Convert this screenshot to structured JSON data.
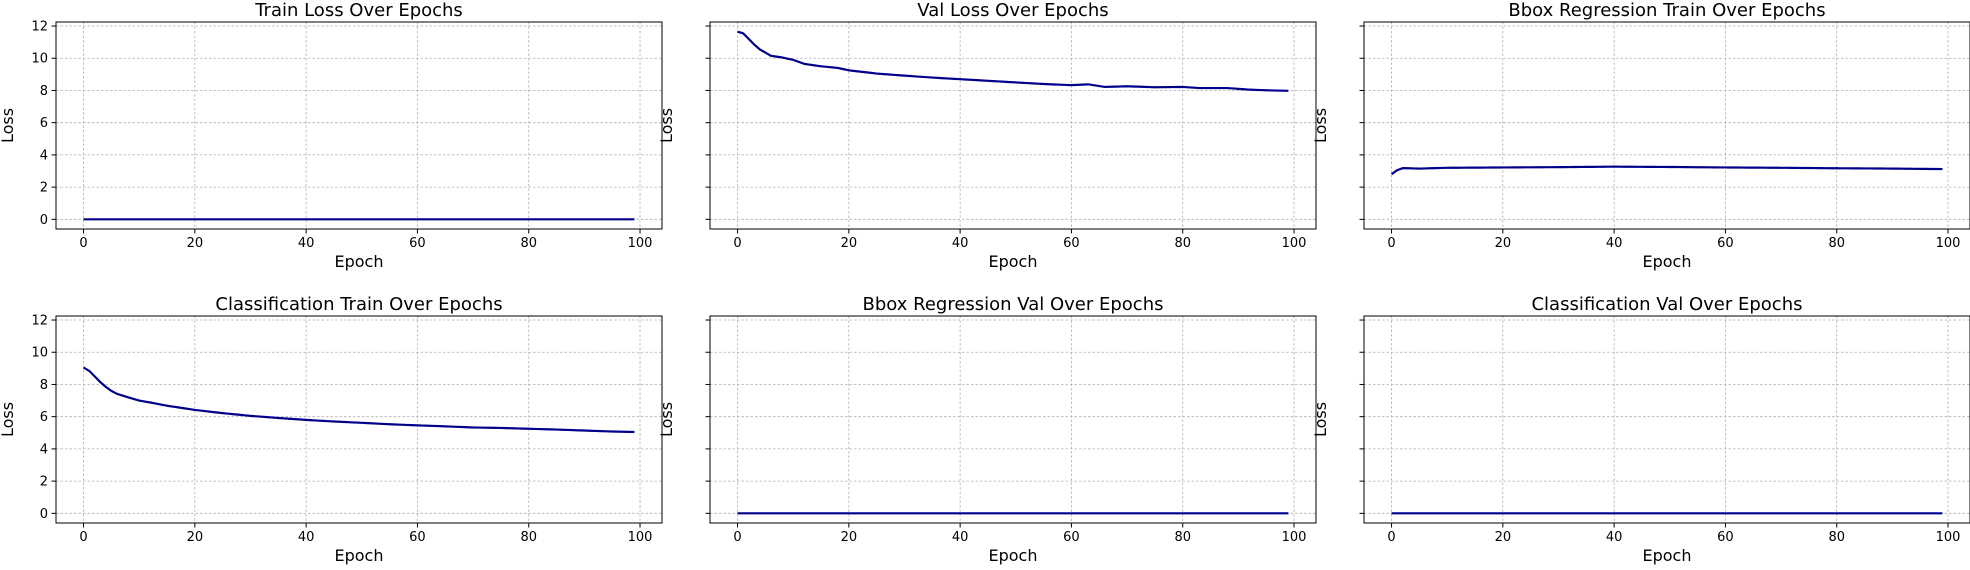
{
  "figure": {
    "line_color": "#00008b",
    "grid_color": "#b0b0b0",
    "sharey": true
  },
  "chart_data": [
    {
      "type": "line",
      "title": "Train Loss Over Epochs",
      "xlabel": "Epoch",
      "ylabel": "Loss",
      "xlim": [
        -4.95,
        103.95
      ],
      "ylim": [
        -0.6,
        12.25
      ],
      "xticks": [
        0,
        20,
        40,
        60,
        80,
        100
      ],
      "yticks": [
        0,
        2,
        4,
        6,
        8,
        10,
        12
      ],
      "show_ytick_labels": true,
      "grid": true,
      "series": [
        {
          "x_start": 0,
          "x_end": 99,
          "samples": 100,
          "points": [
            [
              0,
              0.0
            ],
            [
              99,
              0.0
            ]
          ]
        }
      ]
    },
    {
      "type": "line",
      "title": "Val Loss Over Epochs",
      "xlabel": "Epoch",
      "ylabel": "Loss",
      "xlim": [
        -4.95,
        103.95
      ],
      "ylim": [
        -0.6,
        12.25
      ],
      "xticks": [
        0,
        20,
        40,
        60,
        80,
        100
      ],
      "yticks": [
        0,
        2,
        4,
        6,
        8,
        10,
        12
      ],
      "show_ytick_labels": false,
      "grid": true,
      "series": [
        {
          "x_start": 0,
          "x_end": 99,
          "samples": 100,
          "points": [
            [
              0,
              11.65
            ],
            [
              1,
              11.55
            ],
            [
              2,
              11.2
            ],
            [
              3,
              10.85
            ],
            [
              4,
              10.55
            ],
            [
              5,
              10.35
            ],
            [
              6,
              10.15
            ],
            [
              8,
              10.05
            ],
            [
              10,
              9.9
            ],
            [
              12,
              9.65
            ],
            [
              15,
              9.5
            ],
            [
              18,
              9.4
            ],
            [
              20,
              9.25
            ],
            [
              25,
              9.05
            ],
            [
              30,
              8.92
            ],
            [
              35,
              8.8
            ],
            [
              40,
              8.7
            ],
            [
              45,
              8.6
            ],
            [
              50,
              8.5
            ],
            [
              55,
              8.4
            ],
            [
              60,
              8.33
            ],
            [
              63,
              8.38
            ],
            [
              66,
              8.22
            ],
            [
              70,
              8.26
            ],
            [
              75,
              8.2
            ],
            [
              80,
              8.22
            ],
            [
              83,
              8.15
            ],
            [
              88,
              8.15
            ],
            [
              92,
              8.05
            ],
            [
              96,
              8.0
            ],
            [
              99,
              7.98
            ]
          ]
        }
      ]
    },
    {
      "type": "line",
      "title": "Bbox Regression Train Over Epochs",
      "xlabel": "Epoch",
      "ylabel": "Loss",
      "xlim": [
        -4.95,
        103.95
      ],
      "ylim": [
        -0.6,
        12.25
      ],
      "xticks": [
        0,
        20,
        40,
        60,
        80,
        100
      ],
      "yticks": [
        0,
        2,
        4,
        6,
        8,
        10,
        12
      ],
      "show_ytick_labels": false,
      "grid": true,
      "series": [
        {
          "x_start": 0,
          "x_end": 99,
          "samples": 100,
          "points": [
            [
              0,
              2.8
            ],
            [
              1,
              3.05
            ],
            [
              2,
              3.18
            ],
            [
              5,
              3.15
            ],
            [
              10,
              3.2
            ],
            [
              20,
              3.22
            ],
            [
              30,
              3.24
            ],
            [
              40,
              3.27
            ],
            [
              50,
              3.25
            ],
            [
              60,
              3.22
            ],
            [
              70,
              3.2
            ],
            [
              80,
              3.17
            ],
            [
              90,
              3.15
            ],
            [
              99,
              3.12
            ]
          ]
        }
      ]
    },
    {
      "type": "line",
      "title": "Classification Train Over Epochs",
      "xlabel": "Epoch",
      "ylabel": "Loss",
      "xlim": [
        -4.95,
        103.95
      ],
      "ylim": [
        -0.6,
        12.25
      ],
      "xticks": [
        0,
        20,
        40,
        60,
        80,
        100
      ],
      "yticks": [
        0,
        2,
        4,
        6,
        8,
        10,
        12
      ],
      "show_ytick_labels": true,
      "grid": true,
      "series": [
        {
          "x_start": 0,
          "x_end": 99,
          "samples": 100,
          "points": [
            [
              0,
              9.05
            ],
            [
              1,
              8.85
            ],
            [
              2,
              8.5
            ],
            [
              3,
              8.15
            ],
            [
              4,
              7.85
            ],
            [
              5,
              7.6
            ],
            [
              6,
              7.42
            ],
            [
              8,
              7.2
            ],
            [
              10,
              7.0
            ],
            [
              12,
              6.88
            ],
            [
              15,
              6.68
            ],
            [
              20,
              6.42
            ],
            [
              25,
              6.22
            ],
            [
              30,
              6.05
            ],
            [
              35,
              5.92
            ],
            [
              40,
              5.8
            ],
            [
              45,
              5.7
            ],
            [
              50,
              5.62
            ],
            [
              55,
              5.53
            ],
            [
              60,
              5.46
            ],
            [
              65,
              5.4
            ],
            [
              70,
              5.33
            ],
            [
              75,
              5.3
            ],
            [
              80,
              5.25
            ],
            [
              85,
              5.2
            ],
            [
              90,
              5.14
            ],
            [
              95,
              5.08
            ],
            [
              99,
              5.05
            ]
          ]
        }
      ]
    },
    {
      "type": "line",
      "title": "Bbox Regression Val Over Epochs",
      "xlabel": "Epoch",
      "ylabel": "Loss",
      "xlim": [
        -4.95,
        103.95
      ],
      "ylim": [
        -0.6,
        12.25
      ],
      "xticks": [
        0,
        20,
        40,
        60,
        80,
        100
      ],
      "yticks": [
        0,
        2,
        4,
        6,
        8,
        10,
        12
      ],
      "show_ytick_labels": false,
      "grid": true,
      "series": [
        {
          "x_start": 0,
          "x_end": 99,
          "samples": 100,
          "points": [
            [
              0,
              0.0
            ],
            [
              99,
              0.0
            ]
          ]
        }
      ]
    },
    {
      "type": "line",
      "title": "Classification Val Over Epochs",
      "xlabel": "Epoch",
      "ylabel": "Loss",
      "xlim": [
        -4.95,
        103.95
      ],
      "ylim": [
        -0.6,
        12.25
      ],
      "xticks": [
        0,
        20,
        40,
        60,
        80,
        100
      ],
      "yticks": [
        0,
        2,
        4,
        6,
        8,
        10,
        12
      ],
      "show_ytick_labels": false,
      "grid": true,
      "series": [
        {
          "x_start": 0,
          "x_end": 99,
          "samples": 100,
          "points": [
            [
              0,
              0.0
            ],
            [
              99,
              0.0
            ]
          ]
        }
      ]
    }
  ]
}
